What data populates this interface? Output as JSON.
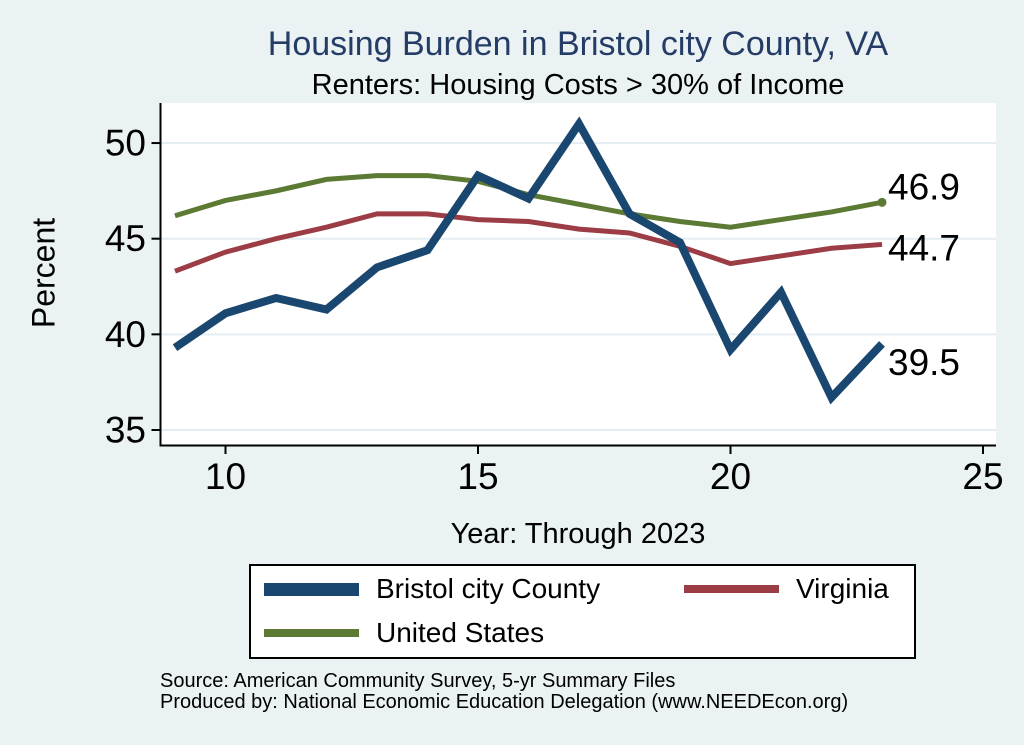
{
  "page": {
    "background": "#eaf2f3",
    "text_color": "#000000"
  },
  "header": {
    "title": "Housing Burden in Bristol city County, VA",
    "subtitle": "Renters: Housing Costs > 30% of Income",
    "title_color": "#243c66"
  },
  "chart_data": {
    "type": "line",
    "title": "Housing Burden in Bristol city County, VA",
    "subtitle": "Renters: Housing Costs > 30% of Income",
    "xlabel": "Year: Through 2023",
    "ylabel": "Percent",
    "x": [
      9,
      10,
      11,
      12,
      13,
      14,
      15,
      16,
      17,
      18,
      19,
      20,
      21,
      22,
      23
    ],
    "xticks": [
      10,
      15,
      20,
      25
    ],
    "yticks": [
      35,
      40,
      45,
      50
    ],
    "xlim": [
      8.7,
      25.3
    ],
    "ylim": [
      34.2,
      52.1
    ],
    "grid": "horizontal",
    "gridline_color": "#e4eef2",
    "plot_background": "#ffffff",
    "axis_color": "#000000",
    "legend_position": "bottom",
    "series": [
      {
        "name": "Bristol city County",
        "color": "#1a476f",
        "line_width": 8,
        "values": [
          39.3,
          41.1,
          41.9,
          41.3,
          43.5,
          44.4,
          48.3,
          47.1,
          51.0,
          46.3,
          44.8,
          39.2,
          42.2,
          36.7,
          39.5
        ],
        "end_label": "39.5",
        "end_marker": false
      },
      {
        "name": "Virginia",
        "color": "#9c3d46",
        "line_width": 5,
        "values": [
          43.3,
          44.3,
          45.0,
          45.6,
          46.3,
          46.3,
          46.0,
          45.9,
          45.5,
          45.3,
          44.6,
          43.7,
          44.1,
          44.5,
          44.7
        ],
        "end_label": "44.7",
        "end_marker": false
      },
      {
        "name": "United States",
        "color": "#5d7a35",
        "line_width": 5,
        "values": [
          46.2,
          47.0,
          47.5,
          48.1,
          48.3,
          48.3,
          48.0,
          47.3,
          46.8,
          46.3,
          45.9,
          45.6,
          46.0,
          46.4,
          46.9
        ],
        "end_label": "46.9",
        "end_marker": true
      }
    ]
  },
  "footer": {
    "source": "Source: American Community Survey, 5-yr Summary Files",
    "produced_by": "Produced by: National Economic Education Delegation (www.NEEDEcon.org)"
  }
}
